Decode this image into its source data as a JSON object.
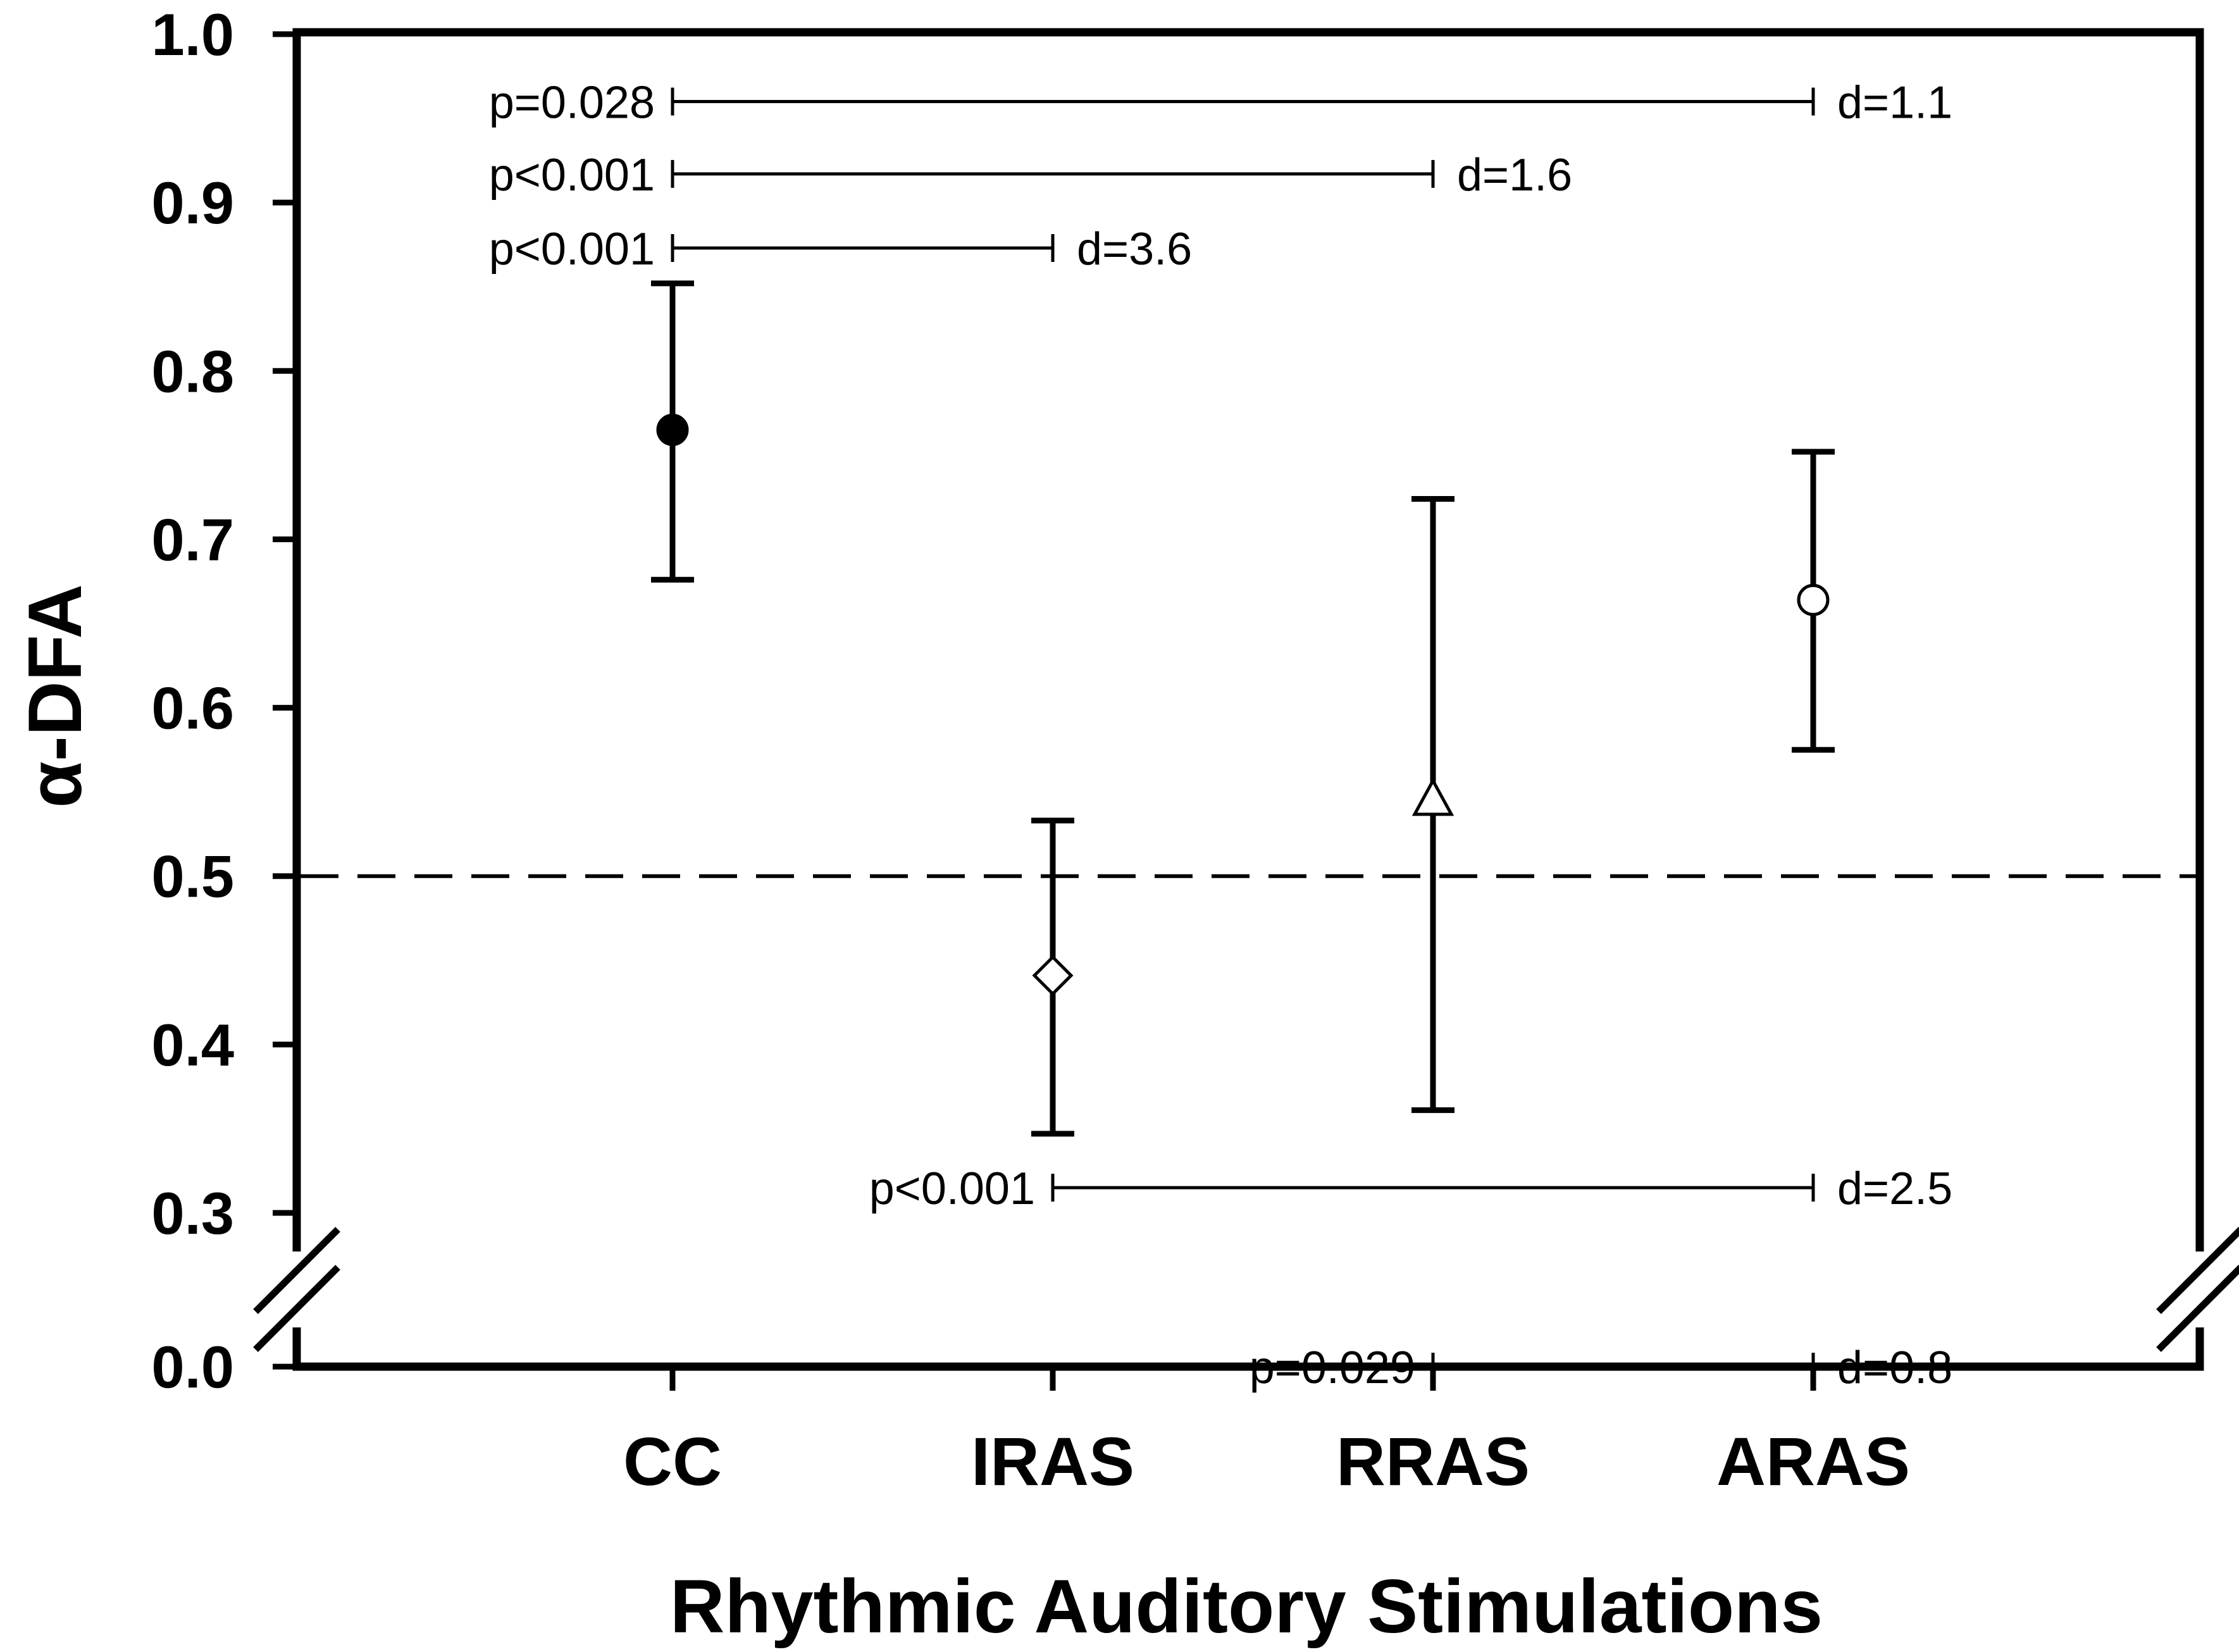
{
  "chart_data": {
    "type": "scatter",
    "title": "",
    "xlabel": "Rhythmic Auditory Stimulations",
    "ylabel": "α-DFA",
    "categories": [
      "CC",
      "IRAS",
      "RRAS",
      "ARAS"
    ],
    "series": [
      {
        "points": [
          {
            "x": "CC",
            "y": 0.765,
            "err_low": 0.676,
            "err_high": 0.852,
            "marker": "filled-circle"
          },
          {
            "x": "IRAS",
            "y": 0.441,
            "err_low": 0.347,
            "err_high": 0.533,
            "marker": "open-diamond"
          },
          {
            "x": "RRAS",
            "y": 0.545,
            "err_low": 0.361,
            "err_high": 0.724,
            "marker": "open-triangle"
          },
          {
            "x": "ARAS",
            "y": 0.664,
            "err_low": 0.575,
            "err_high": 0.752,
            "marker": "open-circle"
          }
        ]
      }
    ],
    "y_ticks": [
      "0.0",
      "0.3",
      "0.4",
      "0.5",
      "0.6",
      "0.7",
      "0.8",
      "0.9",
      "1.0"
    ],
    "ylim": [
      0.0,
      1.0
    ],
    "y_axis_break": [
      0.0,
      0.3
    ],
    "reference_line": {
      "y": 0.5,
      "style": "dashed"
    },
    "comparisons": [
      {
        "from": "CC",
        "to": "ARAS",
        "y": 0.96,
        "p_label": "p=0.028",
        "d_label": "d=1.1"
      },
      {
        "from": "CC",
        "to": "RRAS",
        "y": 0.917,
        "p_label": "p<0.001",
        "d_label": "d=1.6"
      },
      {
        "from": "CC",
        "to": "IRAS",
        "y": 0.873,
        "p_label": "p<0.001",
        "d_label": "d=3.6"
      },
      {
        "from": "IRAS",
        "to": "ARAS",
        "y": 0.315,
        "p_label": "p<0.001",
        "d_label": "d=2.5"
      },
      {
        "from": "RRAS",
        "to": "ARAS",
        "y": 0.267,
        "p_label": "p=0.029",
        "d_label": "d=0.8"
      }
    ],
    "grid": false,
    "legend": "none",
    "colors": {
      "marker_fill": "#000000",
      "open_fill": "#ffffff",
      "line": "#000000"
    }
  }
}
